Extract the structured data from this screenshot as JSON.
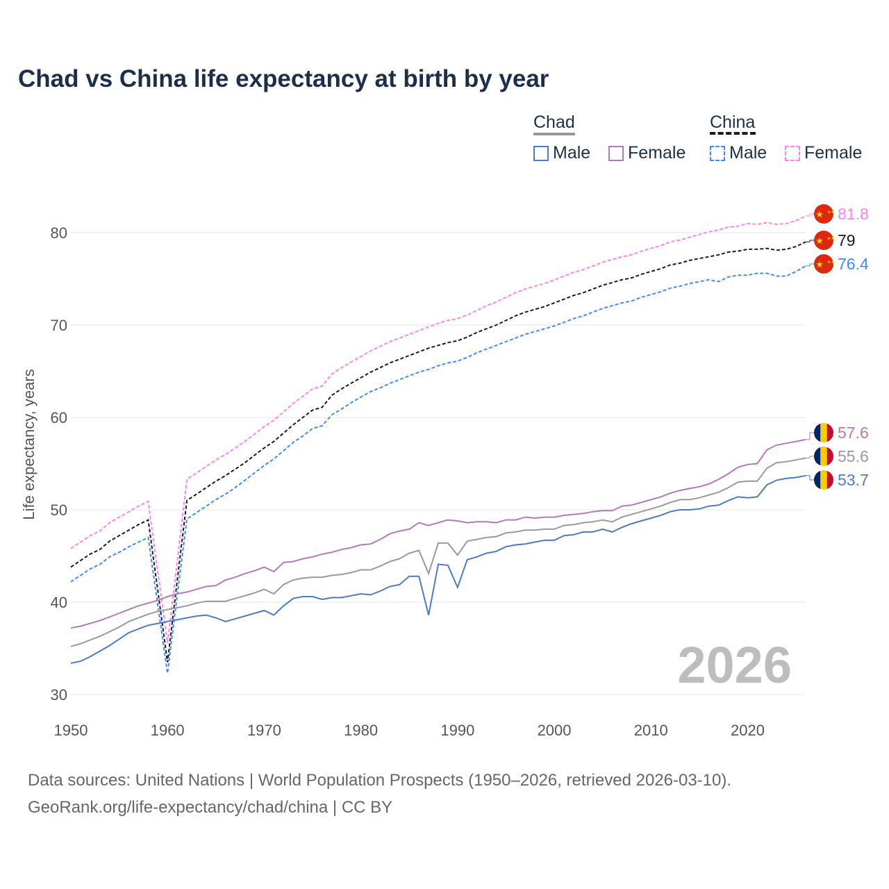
{
  "title": "Chad vs China life expectancy at birth by year",
  "watermark_year": "2026",
  "footer": {
    "line1": "Data sources: United Nations | World Population Prospects (1950–2026, retrieved 2026-03-10).",
    "line2": "GeoRank.org/life-expectancy/chad/china | CC BY"
  },
  "legend": {
    "groups": [
      {
        "name": "Chad",
        "items": [
          "Male",
          "Female"
        ]
      },
      {
        "name": "China",
        "items": [
          "Male",
          "Female"
        ]
      }
    ]
  },
  "chart_data": {
    "type": "line",
    "title": "Chad vs China life expectancy at birth by year",
    "xlabel": "",
    "ylabel": "Life expectancy, years",
    "xlim": [
      1950,
      2026
    ],
    "ylim": [
      30,
      82
    ],
    "xticks": [
      "1950",
      "1960",
      "1970",
      "1980",
      "1990",
      "2000",
      "2010",
      "2020"
    ],
    "yticks": [
      "30",
      "40",
      "50",
      "60",
      "70",
      "80"
    ],
    "grid": true,
    "legend_position": "top-right",
    "x_start": 1950,
    "series": [
      {
        "name": "China Female",
        "country": "China",
        "color": "#ff80ef",
        "dashed": true,
        "end_label": "81.8",
        "values": [
          45.8,
          46.5,
          47.2,
          47.7,
          48.6,
          49.2,
          49.8,
          50.4,
          50.9,
          43.2,
          35.6,
          44.4,
          53.3,
          54.0,
          54.7,
          55.4,
          56.0,
          56.7,
          57.4,
          58.2,
          59.0,
          59.7,
          60.6,
          61.5,
          62.3,
          63.1,
          63.4,
          64.7,
          65.4,
          66.0,
          66.6,
          67.2,
          67.7,
          68.2,
          68.6,
          69.0,
          69.4,
          69.8,
          70.2,
          70.5,
          70.7,
          71.1,
          71.6,
          72.1,
          72.5,
          73.0,
          73.5,
          73.9,
          74.2,
          74.5,
          74.9,
          75.3,
          75.7,
          76.0,
          76.4,
          76.8,
          77.1,
          77.4,
          77.6,
          78.0,
          78.3,
          78.6,
          79.0,
          79.2,
          79.5,
          79.8,
          80.1,
          80.3,
          80.6,
          80.7,
          81.0,
          80.9,
          81.1,
          80.9,
          81.0,
          81.3,
          81.8
        ]
      },
      {
        "name": "China",
        "country": "China",
        "color": "#1a1a1a",
        "dashed": true,
        "end_label": "79",
        "values": [
          43.8,
          44.5,
          45.2,
          45.7,
          46.6,
          47.2,
          47.8,
          48.4,
          48.9,
          41.2,
          33.5,
          42.3,
          51.0,
          51.7,
          52.4,
          53.1,
          53.7,
          54.4,
          55.1,
          55.9,
          56.7,
          57.4,
          58.3,
          59.2,
          60.0,
          60.8,
          61.1,
          62.4,
          63.1,
          63.7,
          64.3,
          64.9,
          65.4,
          65.9,
          66.3,
          66.7,
          67.1,
          67.5,
          67.8,
          68.1,
          68.3,
          68.7,
          69.2,
          69.6,
          70.0,
          70.5,
          71.0,
          71.4,
          71.7,
          72.0,
          72.4,
          72.8,
          73.2,
          73.5,
          73.9,
          74.3,
          74.6,
          74.9,
          75.1,
          75.5,
          75.8,
          76.1,
          76.5,
          76.7,
          77.0,
          77.2,
          77.4,
          77.6,
          77.9,
          78.0,
          78.2,
          78.2,
          78.3,
          78.1,
          78.2,
          78.5,
          79.0
        ]
      },
      {
        "name": "China Male",
        "country": "China",
        "color": "#3d8bff",
        "dashed": true,
        "end_label": "76.4",
        "values": [
          42.2,
          42.9,
          43.6,
          44.1,
          44.9,
          45.4,
          46.0,
          46.5,
          47.0,
          39.6,
          32.3,
          40.7,
          49.0,
          49.7,
          50.4,
          51.1,
          51.7,
          52.4,
          53.2,
          54.0,
          54.8,
          55.5,
          56.4,
          57.3,
          58.0,
          58.8,
          59.1,
          60.3,
          60.9,
          61.6,
          62.2,
          62.8,
          63.2,
          63.7,
          64.1,
          64.5,
          64.9,
          65.2,
          65.6,
          65.9,
          66.1,
          66.5,
          67.0,
          67.4,
          67.8,
          68.2,
          68.6,
          69.0,
          69.3,
          69.6,
          69.9,
          70.3,
          70.7,
          71.0,
          71.4,
          71.8,
          72.1,
          72.4,
          72.6,
          73.0,
          73.3,
          73.6,
          74.0,
          74.2,
          74.5,
          74.7,
          74.9,
          74.7,
          75.2,
          75.4,
          75.4,
          75.6,
          75.6,
          75.3,
          75.3,
          75.8,
          76.4
        ]
      },
      {
        "name": "Chad Female",
        "country": "Chad",
        "color": "#b279b8",
        "dashed": false,
        "end_label": "57.6",
        "values": [
          37.2,
          37.4,
          37.7,
          38.0,
          38.4,
          38.8,
          39.2,
          39.6,
          39.9,
          40.2,
          40.6,
          40.9,
          41.1,
          41.4,
          41.7,
          41.8,
          42.4,
          42.7,
          43.1,
          43.4,
          43.8,
          43.3,
          44.3,
          44.4,
          44.7,
          44.9,
          45.2,
          45.4,
          45.7,
          45.9,
          46.2,
          46.3,
          46.8,
          47.4,
          47.7,
          47.9,
          48.6,
          48.3,
          48.6,
          48.9,
          48.8,
          48.6,
          48.7,
          48.7,
          48.6,
          48.9,
          48.9,
          49.2,
          49.1,
          49.2,
          49.2,
          49.4,
          49.5,
          49.6,
          49.8,
          49.9,
          49.9,
          50.4,
          50.5,
          50.8,
          51.1,
          51.4,
          51.8,
          52.1,
          52.3,
          52.5,
          52.8,
          53.3,
          53.9,
          54.6,
          54.9,
          55.0,
          56.5,
          57.0,
          57.2,
          57.4,
          57.6
        ]
      },
      {
        "name": "Chad",
        "country": "Chad",
        "color": "#999999",
        "dashed": false,
        "end_label": "55.6",
        "values": [
          35.2,
          35.5,
          35.9,
          36.3,
          36.8,
          37.3,
          37.9,
          38.3,
          38.7,
          39.0,
          39.2,
          39.4,
          39.6,
          39.9,
          40.1,
          40.1,
          40.1,
          40.4,
          40.7,
          41.0,
          41.4,
          40.9,
          41.9,
          42.4,
          42.6,
          42.7,
          42.7,
          42.9,
          43.0,
          43.2,
          43.5,
          43.5,
          43.9,
          44.4,
          44.7,
          45.3,
          45.6,
          43.1,
          46.4,
          46.4,
          45.1,
          46.6,
          46.8,
          47.0,
          47.1,
          47.5,
          47.6,
          47.8,
          47.8,
          47.9,
          47.9,
          48.3,
          48.4,
          48.6,
          48.7,
          48.9,
          48.7,
          49.2,
          49.5,
          49.8,
          50.1,
          50.4,
          50.8,
          51.1,
          51.1,
          51.3,
          51.6,
          51.9,
          52.4,
          53.0,
          53.1,
          53.1,
          54.5,
          55.1,
          55.2,
          55.4,
          55.6
        ]
      },
      {
        "name": "Chad Male",
        "country": "Chad",
        "color": "#4a7bc8",
        "dashed": false,
        "end_label": "53.7",
        "values": [
          33.4,
          33.6,
          34.1,
          34.7,
          35.3,
          36.0,
          36.7,
          37.1,
          37.5,
          37.7,
          37.9,
          38.1,
          38.3,
          38.5,
          38.6,
          38.3,
          37.9,
          38.2,
          38.5,
          38.8,
          39.1,
          38.6,
          39.6,
          40.4,
          40.6,
          40.6,
          40.3,
          40.5,
          40.5,
          40.7,
          40.9,
          40.8,
          41.2,
          41.7,
          41.9,
          42.8,
          42.8,
          38.6,
          44.1,
          44.0,
          41.6,
          44.6,
          44.9,
          45.3,
          45.5,
          46.0,
          46.2,
          46.3,
          46.5,
          46.7,
          46.7,
          47.2,
          47.3,
          47.6,
          47.6,
          47.9,
          47.6,
          48.1,
          48.5,
          48.8,
          49.1,
          49.4,
          49.8,
          50.0,
          50.0,
          50.1,
          50.4,
          50.5,
          51.0,
          51.4,
          51.3,
          51.4,
          52.7,
          53.2,
          53.4,
          53.5,
          53.7
        ]
      }
    ]
  }
}
